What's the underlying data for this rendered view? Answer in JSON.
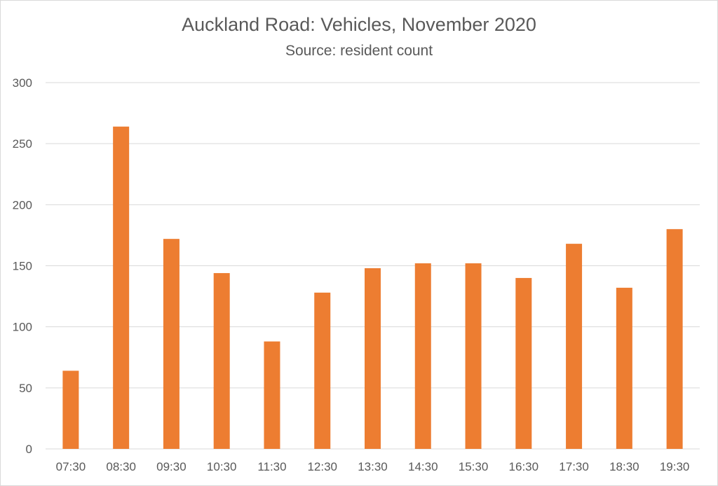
{
  "chart_data": {
    "type": "bar",
    "title": "Auckland Road: Vehicles, November 2020",
    "subtitle": "Source: resident count",
    "xlabel": "",
    "ylabel": "",
    "categories": [
      "07:30",
      "08:30",
      "09:30",
      "10:30",
      "11:30",
      "12:30",
      "13:30",
      "14:30",
      "15:30",
      "16:30",
      "17:30",
      "18:30",
      "19:30"
    ],
    "values": [
      64,
      264,
      172,
      144,
      88,
      128,
      148,
      152,
      152,
      140,
      168,
      132,
      180
    ],
    "ylim": [
      0,
      300
    ],
    "yticks": [
      "0",
      "50",
      "100",
      "150",
      "200",
      "250",
      "300"
    ],
    "grid": true,
    "legend": "none",
    "colors": {
      "bar": "#ED7D31",
      "grid": "#D9D9D9",
      "text": "#595959"
    }
  }
}
